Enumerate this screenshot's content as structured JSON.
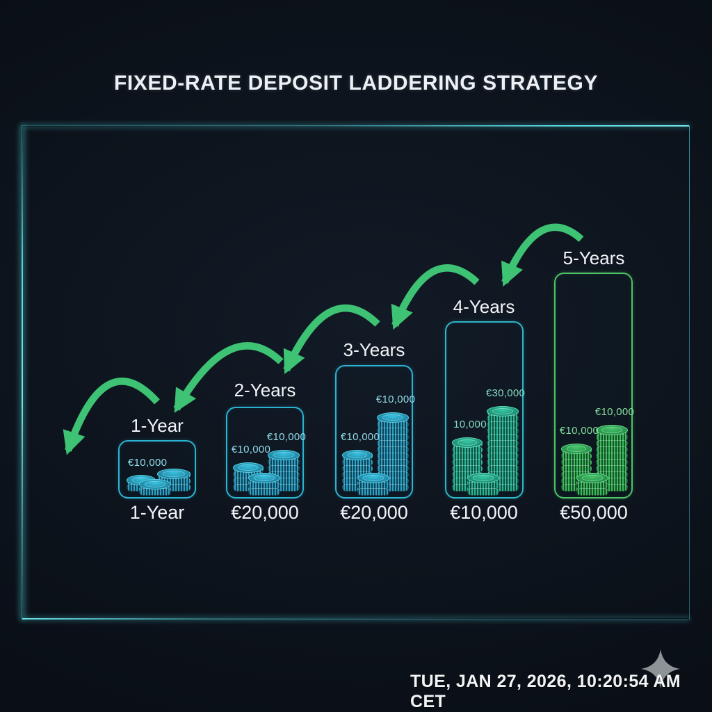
{
  "title": "FIXED-RATE DEPOSIT LADDERING STRATEGY",
  "footer": {
    "timestamp": "TUE, JAN 27, 2026, 10:20:54 AM CET",
    "sparkle_icon": "four-pointed-star",
    "sparkle_color": "#8e9398"
  },
  "colors": {
    "background": "#0d141d",
    "frame_glow": "#55d6dc",
    "arrow_green": "#3ec273",
    "cyan_accent": "#2cb3d4",
    "teal_accent": "#2eb6c6",
    "green_accent": "#4dc468",
    "text": "#f2f5f7"
  },
  "ladder": {
    "columns": [
      {
        "id": "1-year",
        "top_label": "1-Year",
        "bottom_label": "1-Year",
        "theme": "cyan",
        "stack_labels": [
          "€10,000"
        ]
      },
      {
        "id": "2-years",
        "top_label": "2-Years",
        "bottom_label": "€20,000",
        "theme": "cyan",
        "stack_labels": [
          "€10,000",
          "€10,000"
        ]
      },
      {
        "id": "3-years",
        "top_label": "3-Years",
        "bottom_label": "€20,000",
        "theme": "cyan",
        "stack_labels": [
          "€10,000",
          "€10,000"
        ]
      },
      {
        "id": "4-years",
        "top_label": "4-Years",
        "bottom_label": "€10,000",
        "theme": "teal",
        "stack_labels": [
          "10,000",
          "€30,000"
        ]
      },
      {
        "id": "5-years",
        "top_label": "5-Years",
        "bottom_label": "€50,000",
        "theme": "green",
        "stack_labels": [
          "€10,000",
          "€10,000"
        ]
      }
    ]
  }
}
